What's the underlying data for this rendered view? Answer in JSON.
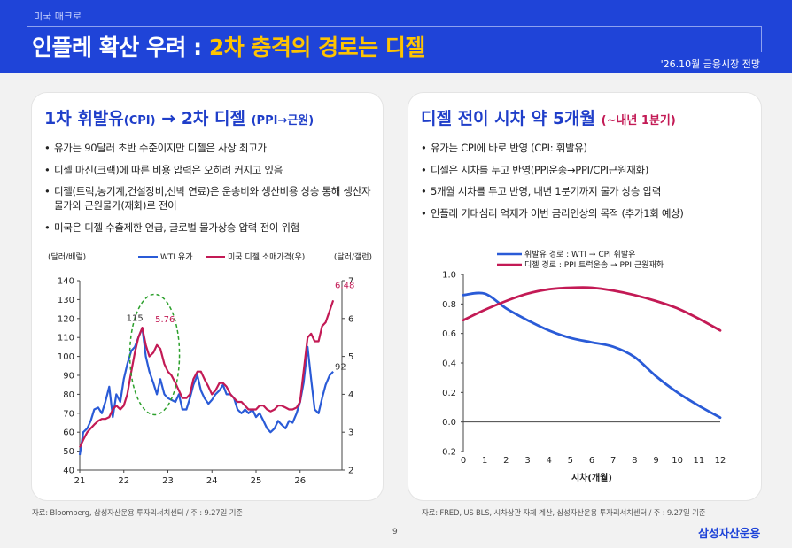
{
  "header": {
    "tag": "미국 매크로",
    "title_main": "인플레 확산 우려 : ",
    "title_highlight": "2차 충격의 경로는 디젤",
    "date": "'26.10월 금융시장 전망"
  },
  "left_card": {
    "title_main": "1차 휘발유",
    "title_sub1": "(CPI)",
    "title_arrow": " → 2차 디젤 ",
    "title_sub2": "(PPI→근원)",
    "bullets": [
      "유가는 90달러 초반 수준이지만 디젤은 사상 최고가",
      "디젤 마진(크랙)에 따른 비용 압력은 오히려 커지고 있음",
      "디젤(트럭,농기계,건설장비,선박 연료)은 운송비와 생산비용 상승 통해 생산자물가와 근원물가(재화)로 전이",
      "미국은 디젤 수출제한 언급, 글로벌 물가상승 압력 전이 위험"
    ],
    "source": "자료: Bloomberg, 삼성자산운용 투자리서치센터 / 주 : 9.27일 기준"
  },
  "right_card": {
    "title_main": "디젤 전이 시차 약 5개월 ",
    "title_sub": "(~내년 1분기)",
    "bullets": [
      "유가는 CPI에 바로 반영 (CPI: 휘발유)",
      "디젤은 시차를 두고 반영(PPI운송→PPI/CPI근원재화)",
      "5개월 시차를 두고 반영, 내년 1분기까지 물가 상승 압력",
      "인플레 기대심리 억제가 이번 금리인상의 목적 (추가1회 예상)"
    ],
    "source": "자료: FRED, US BLS, 시차상관 자체 계산, 삼성자산운용 투자리서치센터 / 주 : 9.27일 기준"
  },
  "page_number": "9",
  "brand": "삼성자산운용",
  "colors": {
    "blue": "#2a5bd7",
    "red": "#c31a55",
    "header": "#1f44d8",
    "green": "#2ca02c"
  },
  "chart_data": [
    {
      "type": "line",
      "left_axis_label": "(달러/배럴)",
      "right_axis_label": "(달러/갤런)",
      "x_ticks": [
        "21",
        "22",
        "23",
        "24",
        "25",
        "26"
      ],
      "ylim_left": [
        40,
        140
      ],
      "yticks_left": [
        40,
        50,
        60,
        70,
        80,
        90,
        100,
        110,
        120,
        130,
        140
      ],
      "ylim_right": [
        2,
        7
      ],
      "yticks_right": [
        2,
        3,
        4,
        5,
        6,
        7
      ],
      "series": [
        {
          "name": "WTI 유가",
          "axis": "left",
          "color": "#2a5bd7",
          "x": [
            21.0,
            21.08,
            21.17,
            21.25,
            21.33,
            21.42,
            21.5,
            21.58,
            21.67,
            21.75,
            21.83,
            21.92,
            22.0,
            22.08,
            22.17,
            22.25,
            22.33,
            22.42,
            22.5,
            22.58,
            22.67,
            22.75,
            22.83,
            22.92,
            23.0,
            23.08,
            23.17,
            23.25,
            23.33,
            23.42,
            23.5,
            23.58,
            23.67,
            23.75,
            23.83,
            23.92,
            24.0,
            24.08,
            24.17,
            24.25,
            24.33,
            24.42,
            24.5,
            24.58,
            24.67,
            24.75,
            24.83,
            24.92,
            25.0,
            25.08,
            25.17,
            25.25,
            25.33,
            25.42,
            25.5,
            25.58,
            25.67,
            25.75,
            25.83,
            25.92,
            26.0,
            26.08,
            26.17,
            26.25,
            26.33,
            26.42,
            26.5,
            26.58,
            26.67,
            26.75
          ],
          "values": [
            48,
            60,
            62,
            66,
            72,
            73,
            70,
            76,
            84,
            68,
            80,
            76,
            88,
            96,
            103,
            105,
            110,
            115,
            100,
            92,
            86,
            80,
            88,
            80,
            78,
            77,
            76,
            80,
            72,
            72,
            78,
            85,
            90,
            82,
            78,
            75,
            77,
            80,
            82,
            85,
            80,
            80,
            78,
            72,
            70,
            72,
            70,
            72,
            68,
            70,
            66,
            62,
            60,
            62,
            66,
            64,
            62,
            66,
            65,
            70,
            76,
            86,
            105,
            88,
            72,
            70,
            78,
            85,
            90,
            92
          ]
        },
        {
          "name": "미국 디젤 소매가격(우)",
          "axis": "right",
          "color": "#c31a55",
          "x": [
            21.0,
            21.08,
            21.17,
            21.25,
            21.33,
            21.42,
            21.5,
            21.58,
            21.67,
            21.75,
            21.83,
            21.92,
            22.0,
            22.08,
            22.17,
            22.25,
            22.33,
            22.42,
            22.5,
            22.58,
            22.67,
            22.75,
            22.83,
            22.92,
            23.0,
            23.08,
            23.17,
            23.25,
            23.33,
            23.42,
            23.5,
            23.58,
            23.67,
            23.75,
            23.83,
            23.92,
            24.0,
            24.08,
            24.17,
            24.25,
            24.33,
            24.42,
            24.5,
            24.58,
            24.67,
            24.75,
            24.83,
            24.92,
            25.0,
            25.08,
            25.17,
            25.25,
            25.33,
            25.42,
            25.5,
            25.58,
            25.67,
            25.75,
            25.83,
            25.92,
            26.0,
            26.08,
            26.17,
            26.25,
            26.33,
            26.42,
            26.5,
            26.58,
            26.67,
            26.75
          ],
          "values": [
            2.6,
            2.8,
            3.0,
            3.1,
            3.2,
            3.3,
            3.35,
            3.35,
            3.4,
            3.6,
            3.7,
            3.6,
            3.7,
            4.0,
            4.6,
            5.1,
            5.5,
            5.76,
            5.3,
            5.0,
            5.1,
            5.3,
            5.2,
            4.8,
            4.6,
            4.5,
            4.3,
            4.1,
            3.9,
            3.9,
            4.0,
            4.4,
            4.6,
            4.6,
            4.4,
            4.2,
            4.0,
            4.1,
            4.3,
            4.3,
            4.2,
            4.0,
            3.9,
            3.8,
            3.8,
            3.7,
            3.6,
            3.6,
            3.6,
            3.7,
            3.7,
            3.6,
            3.55,
            3.6,
            3.7,
            3.7,
            3.65,
            3.6,
            3.6,
            3.65,
            3.8,
            4.6,
            5.5,
            5.6,
            5.4,
            5.4,
            5.8,
            5.9,
            6.2,
            6.48
          ]
        }
      ],
      "annotations": [
        {
          "text": "115",
          "x": 22.42,
          "y": 115,
          "axis": "left",
          "color": "#333333"
        },
        {
          "text": "5.76",
          "x": 22.55,
          "y": 5.76,
          "axis": "right",
          "color": "#c31a55"
        },
        {
          "text": "6.48",
          "x": 26.75,
          "y": 6.48,
          "axis": "right",
          "color": "#c31a55"
        },
        {
          "text": "92",
          "x": 26.75,
          "y": 92,
          "axis": "left",
          "color": "#333333"
        }
      ],
      "highlight_ellipse": {
        "x_center": 22.7,
        "y_center": 101,
        "color": "#2ca02c"
      }
    },
    {
      "type": "line",
      "xlabel": "시차(개월)",
      "x": [
        0,
        1,
        2,
        3,
        4,
        5,
        6,
        7,
        8,
        9,
        10,
        11,
        12
      ],
      "ylim": [
        -0.2,
        1.0
      ],
      "yticks": [
        -0.2,
        0.0,
        0.2,
        0.4,
        0.6,
        0.8,
        1.0
      ],
      "series": [
        {
          "name": "휘발유 경로 : WTI → CPI 휘발유",
          "color": "#2a5bd7",
          "values": [
            0.86,
            0.87,
            0.77,
            0.69,
            0.62,
            0.57,
            0.54,
            0.51,
            0.44,
            0.31,
            0.2,
            0.11,
            0.03
          ]
        },
        {
          "name": "디젤 경로 : PPI 트럭운송 → PPI 근원재화",
          "color": "#c31a55",
          "values": [
            0.69,
            0.76,
            0.82,
            0.87,
            0.9,
            0.91,
            0.91,
            0.89,
            0.86,
            0.82,
            0.77,
            0.7,
            0.62
          ]
        }
      ]
    }
  ]
}
